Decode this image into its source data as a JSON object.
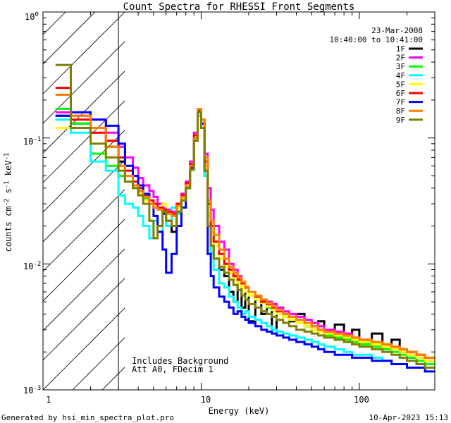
{
  "chart_data": {
    "type": "line",
    "title": "Count Spectra for RHESSI Front Segments",
    "xlabel": "Energy (keV)",
    "ylabel": "counts cm-2 s-1 keV-1",
    "ylabel_parts": {
      "base": "counts cm",
      "sup1": "-2",
      "mid1": " s",
      "sup2": "-1",
      "mid2": " keV",
      "sup3": "-1"
    },
    "xscale": "log",
    "yscale": "log",
    "xlim": [
      1,
      300
    ],
    "ylim": [
      0.001,
      1
    ],
    "x_ticks": [
      {
        "value": 1,
        "label": "1"
      },
      {
        "value": 10,
        "label": "10"
      },
      {
        "value": 100,
        "label": "100"
      }
    ],
    "y_ticks": [
      {
        "value": 1,
        "base": "10",
        "exp": "0"
      },
      {
        "value": 0.1,
        "base": "10",
        "exp": "-1"
      },
      {
        "value": 0.01,
        "base": "10",
        "exp": "-2"
      },
      {
        "value": 0.001,
        "base": "10",
        "exp": "-3"
      }
    ],
    "shaded_region": {
      "x_from": 1,
      "x_to": 3,
      "style": "diagonal-hatch"
    },
    "date": "23-Mar-2008",
    "time_range": "10:40:00 to 10:41:00",
    "annotations": [
      "Includes Background",
      "Att A0, FDecim 1"
    ],
    "footer_left": "Generated by hsi_min_spectra_plot.pro",
    "footer_right": "10-Apr-2023 15:13",
    "legend_position": "top-right",
    "series": [
      {
        "name": "1F",
        "color": "#000000"
      },
      {
        "name": "2F",
        "color": "#ff00ff"
      },
      {
        "name": "3F",
        "color": "#00ff00"
      },
      {
        "name": "4F",
        "color": "#00ffff"
      },
      {
        "name": "5F",
        "color": "#ffff00"
      },
      {
        "name": "6F",
        "color": "#ff0000"
      },
      {
        "name": "7F",
        "color": "#0000ff"
      },
      {
        "name": "8F",
        "color": "#ff8000"
      },
      {
        "name": "9F",
        "color": "#808000"
      }
    ],
    "bin_edges": [
      1.2,
      1.5,
      2.0,
      2.5,
      3.0,
      3.3,
      3.7,
      4.0,
      4.3,
      4.7,
      5.0,
      5.3,
      5.7,
      6.0,
      6.5,
      7.0,
      7.5,
      8.0,
      8.5,
      9.0,
      9.5,
      10.0,
      10.5,
      11.0,
      11.5,
      12.0,
      13.0,
      14.0,
      15.0,
      16.0,
      17.0,
      18.0,
      19.0,
      20.0,
      22.0,
      24.0,
      26.0,
      28.0,
      30.0,
      33.0,
      36.0,
      40.0,
      45.0,
      50.0,
      55.0,
      60.0,
      70.0,
      80.0,
      90.0,
      100.0,
      120.0,
      140.0,
      160.0,
      180.0,
      200.0,
      230.0,
      260.0,
      300.0
    ],
    "values": {
      "1F": [
        0.15,
        0.13,
        0.12,
        0.085,
        0.065,
        0.05,
        0.042,
        0.038,
        0.035,
        0.03,
        0.028,
        0.03,
        0.025,
        0.022,
        0.018,
        0.026,
        0.032,
        0.04,
        0.06,
        0.1,
        0.16,
        0.12,
        0.05,
        0.02,
        0.014,
        0.011,
        0.009,
        0.008,
        0.006,
        0.005,
        0.0075,
        0.0045,
        0.0065,
        0.0035,
        0.0055,
        0.004,
        0.005,
        0.003,
        0.0045,
        0.0038,
        0.0035,
        0.004,
        0.0032,
        0.003,
        0.0035,
        0.0028,
        0.0033,
        0.0026,
        0.003,
        0.0024,
        0.0028,
        0.0022,
        0.0025,
        0.002,
        0.0018,
        0.0016,
        0.0015
      ],
      "2F": [
        0.16,
        0.15,
        0.14,
        0.11,
        0.085,
        0.07,
        0.058,
        0.048,
        0.042,
        0.038,
        0.034,
        0.03,
        0.028,
        0.027,
        0.026,
        0.03,
        0.036,
        0.045,
        0.065,
        0.11,
        0.17,
        0.14,
        0.075,
        0.04,
        0.027,
        0.02,
        0.015,
        0.013,
        0.01,
        0.009,
        0.008,
        0.007,
        0.0065,
        0.006,
        0.0055,
        0.0052,
        0.005,
        0.0048,
        0.0045,
        0.0042,
        0.004,
        0.0038,
        0.0036,
        0.0034,
        0.0032,
        0.003,
        0.0029,
        0.0028,
        0.0026,
        0.0025,
        0.0024,
        0.0022,
        0.0021,
        0.002,
        0.0019,
        0.0018,
        0.0017
      ],
      "3F": [
        0.17,
        0.13,
        0.075,
        0.06,
        0.05,
        0.045,
        0.04,
        0.036,
        0.033,
        0.03,
        0.028,
        0.027,
        0.026,
        0.025,
        0.024,
        0.028,
        0.034,
        0.042,
        0.06,
        0.1,
        0.15,
        0.13,
        0.06,
        0.03,
        0.02,
        0.015,
        0.012,
        0.01,
        0.009,
        0.008,
        0.0075,
        0.007,
        0.0065,
        0.006,
        0.0055,
        0.005,
        0.0045,
        0.0043,
        0.004,
        0.0038,
        0.0036,
        0.0034,
        0.0032,
        0.003,
        0.0029,
        0.0027,
        0.0026,
        0.0025,
        0.0024,
        0.0023,
        0.0022,
        0.0021,
        0.002,
        0.0019,
        0.0018,
        0.0017,
        0.0016
      ],
      "4F": [
        0.14,
        0.11,
        0.065,
        0.055,
        0.035,
        0.03,
        0.028,
        0.024,
        0.02,
        0.016,
        0.022,
        0.018,
        0.026,
        0.02,
        0.028,
        0.025,
        0.033,
        0.04,
        0.058,
        0.095,
        0.15,
        0.12,
        0.05,
        0.02,
        0.012,
        0.009,
        0.007,
        0.0065,
        0.0055,
        0.005,
        0.0045,
        0.004,
        0.0042,
        0.0038,
        0.0036,
        0.0034,
        0.0032,
        0.003,
        0.0029,
        0.0028,
        0.0027,
        0.0026,
        0.0025,
        0.0024,
        0.0023,
        0.0022,
        0.0021,
        0.002,
        0.0019,
        0.0019,
        0.0018,
        0.0017,
        0.0016,
        0.0016,
        0.0015,
        0.0015,
        0.0014
      ],
      "5F": [
        0.12,
        0.12,
        0.09,
        0.07,
        0.055,
        0.045,
        0.04,
        0.036,
        0.032,
        0.03,
        0.03,
        0.028,
        0.03,
        0.026,
        0.024,
        0.028,
        0.033,
        0.041,
        0.058,
        0.1,
        0.16,
        0.12,
        0.06,
        0.025,
        0.018,
        0.014,
        0.011,
        0.0095,
        0.0085,
        0.0075,
        0.007,
        0.0065,
        0.006,
        0.0056,
        0.0052,
        0.0049,
        0.0046,
        0.0043,
        0.004,
        0.0038,
        0.0036,
        0.0034,
        0.0032,
        0.003,
        0.0029,
        0.0028,
        0.0027,
        0.0026,
        0.0025,
        0.0024,
        0.0023,
        0.0022,
        0.0021,
        0.002,
        0.0019,
        0.0018,
        0.0017
      ],
      "6F": [
        0.25,
        0.14,
        0.11,
        0.095,
        0.07,
        0.055,
        0.045,
        0.04,
        0.035,
        0.032,
        0.03,
        0.028,
        0.027,
        0.026,
        0.025,
        0.03,
        0.035,
        0.044,
        0.062,
        0.105,
        0.17,
        0.13,
        0.065,
        0.03,
        0.02,
        0.015,
        0.012,
        0.01,
        0.009,
        0.008,
        0.0075,
        0.007,
        0.0065,
        0.006,
        0.0055,
        0.005,
        0.0048,
        0.0045,
        0.0042,
        0.004,
        0.0038,
        0.0036,
        0.0034,
        0.0032,
        0.003,
        0.0029,
        0.0028,
        0.0027,
        0.0026,
        0.0025,
        0.0024,
        0.0023,
        0.0022,
        0.0021,
        0.002,
        0.0019,
        0.0018
      ],
      "7F": [
        0.15,
        0.16,
        0.14,
        0.125,
        0.09,
        0.06,
        0.05,
        0.042,
        0.036,
        0.03,
        0.024,
        0.018,
        0.013,
        0.0085,
        0.012,
        0.02,
        0.028,
        0.04,
        0.058,
        0.1,
        0.165,
        0.13,
        0.055,
        0.012,
        0.008,
        0.0065,
        0.0055,
        0.005,
        0.0045,
        0.004,
        0.0042,
        0.0038,
        0.0036,
        0.0034,
        0.0032,
        0.003,
        0.0029,
        0.0028,
        0.0027,
        0.0026,
        0.0025,
        0.0024,
        0.0023,
        0.0022,
        0.0021,
        0.002,
        0.0019,
        0.0019,
        0.0018,
        0.0018,
        0.0017,
        0.0017,
        0.0016,
        0.0016,
        0.0015,
        0.0015,
        0.0014
      ],
      "8F": [
        0.22,
        0.15,
        0.12,
        0.085,
        0.06,
        0.05,
        0.042,
        0.038,
        0.034,
        0.03,
        0.028,
        0.027,
        0.026,
        0.025,
        0.024,
        0.029,
        0.034,
        0.042,
        0.06,
        0.1,
        0.17,
        0.14,
        0.07,
        0.032,
        0.022,
        0.017,
        0.013,
        0.011,
        0.0095,
        0.0085,
        0.0078,
        0.0072,
        0.0066,
        0.006,
        0.0056,
        0.0052,
        0.0049,
        0.0046,
        0.0043,
        0.004,
        0.0038,
        0.0036,
        0.0034,
        0.0032,
        0.003,
        0.0029,
        0.0028,
        0.0027,
        0.0026,
        0.0025,
        0.0024,
        0.0023,
        0.0022,
        0.0021,
        0.002,
        0.0019,
        0.0018
      ],
      "9F": [
        0.38,
        0.12,
        0.09,
        0.07,
        0.055,
        0.045,
        0.04,
        0.035,
        0.03,
        0.022,
        0.016,
        0.02,
        0.026,
        0.022,
        0.02,
        0.026,
        0.032,
        0.04,
        0.056,
        0.095,
        0.16,
        0.12,
        0.055,
        0.02,
        0.014,
        0.011,
        0.0095,
        0.0085,
        0.0075,
        0.0068,
        0.0062,
        0.0056,
        0.0052,
        0.0048,
        0.0045,
        0.0042,
        0.004,
        0.0038,
        0.0036,
        0.0034,
        0.0032,
        0.003,
        0.0029,
        0.0028,
        0.0027,
        0.0026,
        0.0025,
        0.0024,
        0.0023,
        0.0022,
        0.0021,
        0.002,
        0.0019,
        0.0018,
        0.0017,
        0.0016,
        0.0015
      ]
    }
  }
}
